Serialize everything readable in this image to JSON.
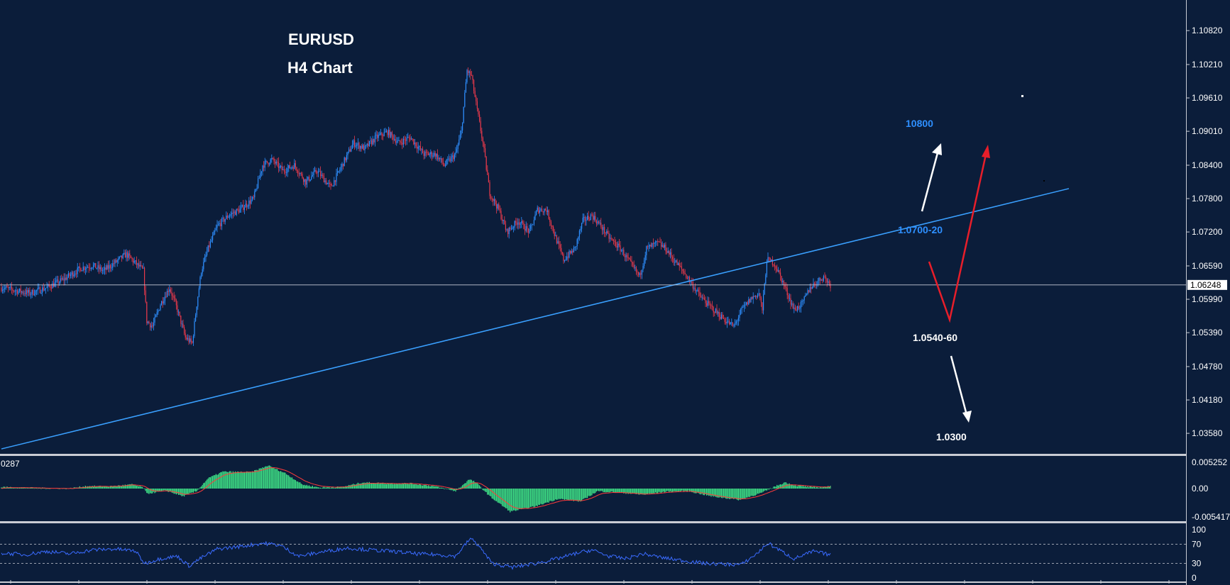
{
  "colors": {
    "background": "#0b1d3a",
    "bull": "#2e8fff",
    "bear": "#e8394b",
    "trendline": "#3aa0ff",
    "macd_hist": "#3ddc84",
    "macd_signal": "#ff3b3b",
    "rsi_line": "#3a6bff",
    "annotation_blue": "#2e8fff",
    "annotation_white": "#ffffff",
    "annotation_red": "#e81e2a"
  },
  "chart_data": [
    {
      "type": "candlestick",
      "title": "EURUSD",
      "subtitle": "H4 Chart",
      "ylim": [
        1.0325,
        1.1137
      ],
      "y_ticks": [
        "1.10820",
        "1.10210",
        "1.09610",
        "1.09010",
        "1.08400",
        "1.07800",
        "1.07200",
        "1.06590",
        "1.05990",
        "1.05390",
        "1.04780",
        "1.04180",
        "1.03580"
      ],
      "current_price": "1.06248",
      "close_path": [
        [
          0,
          1.062
        ],
        [
          12,
          1.0615
        ],
        [
          25,
          1.061
        ],
        [
          40,
          1.062
        ],
        [
          55,
          1.0635
        ],
        [
          70,
          1.0655
        ],
        [
          80,
          1.066
        ],
        [
          90,
          1.065
        ],
        [
          100,
          1.0665
        ],
        [
          110,
          1.068
        ],
        [
          120,
          1.066
        ],
        [
          125,
          1.065
        ],
        [
          128,
          1.056
        ],
        [
          133,
          1.055
        ],
        [
          140,
          1.059
        ],
        [
          148,
          1.062
        ],
        [
          155,
          1.058
        ],
        [
          162,
          1.053
        ],
        [
          168,
          1.052
        ],
        [
          172,
          1.059
        ],
        [
          176,
          1.065
        ],
        [
          182,
          1.069
        ],
        [
          190,
          1.073
        ],
        [
          200,
          1.075
        ],
        [
          210,
          1.076
        ],
        [
          222,
          1.078
        ],
        [
          230,
          1.084
        ],
        [
          238,
          1.085
        ],
        [
          248,
          1.083
        ],
        [
          258,
          1.084
        ],
        [
          268,
          1.081
        ],
        [
          278,
          1.083
        ],
        [
          290,
          1.08
        ],
        [
          300,
          1.084
        ],
        [
          310,
          1.088
        ],
        [
          320,
          1.087
        ],
        [
          330,
          1.089
        ],
        [
          340,
          1.09
        ],
        [
          350,
          1.088
        ],
        [
          360,
          1.089
        ],
        [
          372,
          1.086
        ],
        [
          382,
          1.086
        ],
        [
          390,
          1.084
        ],
        [
          400,
          1.086
        ],
        [
          405,
          1.09
        ],
        [
          410,
          1.101
        ],
        [
          414,
          1.1
        ],
        [
          418,
          1.095
        ],
        [
          424,
          1.088
        ],
        [
          430,
          1.079
        ],
        [
          438,
          1.076
        ],
        [
          445,
          1.072
        ],
        [
          455,
          1.074
        ],
        [
          465,
          1.072
        ],
        [
          472,
          1.076
        ],
        [
          480,
          1.076
        ],
        [
          488,
          1.071
        ],
        [
          495,
          1.067
        ],
        [
          505,
          1.069
        ],
        [
          512,
          1.074
        ],
        [
          520,
          1.075
        ],
        [
          528,
          1.073
        ],
        [
          535,
          1.071
        ],
        [
          545,
          1.069
        ],
        [
          555,
          1.066
        ],
        [
          562,
          1.064
        ],
        [
          568,
          1.069
        ],
        [
          578,
          1.07
        ],
        [
          585,
          1.069
        ],
        [
          592,
          1.067
        ],
        [
          600,
          1.065
        ],
        [
          607,
          1.063
        ],
        [
          615,
          1.0605
        ],
        [
          622,
          1.059
        ],
        [
          630,
          1.0575
        ],
        [
          638,
          1.056
        ],
        [
          645,
          1.055
        ],
        [
          652,
          1.058
        ],
        [
          660,
          1.06
        ],
        [
          667,
          1.061
        ],
        [
          670,
          1.058
        ],
        [
          674,
          1.067
        ],
        [
          680,
          1.0665
        ],
        [
          686,
          1.064
        ],
        [
          692,
          1.061
        ],
        [
          698,
          1.058
        ],
        [
          705,
          1.059
        ],
        [
          712,
          1.062
        ],
        [
          718,
          1.063
        ],
        [
          724,
          1.064
        ],
        [
          730,
          1.0625
        ]
      ],
      "trendline": {
        "from": [
          0,
          1.033
        ],
        "to": [
          940,
          1.0798
        ]
      },
      "annotations": [
        {
          "text": "10800",
          "color": "blue"
        },
        {
          "text": "1.0700-20",
          "color": "blue"
        },
        {
          "text": "1.0540-60",
          "color": "white"
        },
        {
          "text": "1.0300",
          "color": "white"
        }
      ]
    },
    {
      "type": "histogram",
      "indicator": "MACD",
      "label": "0287",
      "y_ticks": [
        "0.005252",
        "0.00",
        "-0.005417"
      ],
      "ylim": [
        -0.0061,
        0.0061
      ],
      "hist_path": [
        [
          0,
          0.0003
        ],
        [
          30,
          0.0001
        ],
        [
          60,
          0.0
        ],
        [
          75,
          0.0005
        ],
        [
          95,
          0.0004
        ],
        [
          115,
          0.0008
        ],
        [
          125,
          0.0002
        ],
        [
          128,
          -0.001
        ],
        [
          145,
          -0.0004
        ],
        [
          160,
          -0.0015
        ],
        [
          172,
          -0.0005
        ],
        [
          182,
          0.002
        ],
        [
          195,
          0.0033
        ],
        [
          220,
          0.0032
        ],
        [
          235,
          0.0045
        ],
        [
          250,
          0.003
        ],
        [
          265,
          0.0008
        ],
        [
          280,
          0.0002
        ],
        [
          300,
          0.0003
        ],
        [
          318,
          0.0012
        ],
        [
          340,
          0.001
        ],
        [
          360,
          0.001
        ],
        [
          380,
          0.0005
        ],
        [
          400,
          -0.0005
        ],
        [
          412,
          0.0018
        ],
        [
          418,
          0.0012
        ],
        [
          430,
          -0.0015
        ],
        [
          448,
          -0.0045
        ],
        [
          470,
          -0.0035
        ],
        [
          490,
          -0.002
        ],
        [
          510,
          -0.0025
        ],
        [
          525,
          -0.0005
        ],
        [
          545,
          -0.0008
        ],
        [
          565,
          -0.0012
        ],
        [
          585,
          -0.0006
        ],
        [
          605,
          -0.0005
        ],
        [
          625,
          -0.0015
        ],
        [
          650,
          -0.0022
        ],
        [
          670,
          -0.0008
        ],
        [
          680,
          0.0003
        ],
        [
          690,
          0.0012
        ],
        [
          700,
          0.0006
        ],
        [
          715,
          0.0002
        ],
        [
          730,
          0.0004
        ]
      ]
    },
    {
      "type": "line",
      "indicator": "RSI",
      "y_ticks": [
        "100",
        "70",
        "30",
        "0"
      ],
      "ylim": [
        0,
        100
      ],
      "levels": [
        70,
        30
      ],
      "rsi_path": [
        [
          0,
          52
        ],
        [
          20,
          48
        ],
        [
          40,
          55
        ],
        [
          60,
          50
        ],
        [
          80,
          58
        ],
        [
          100,
          60
        ],
        [
          118,
          56
        ],
        [
          126,
          30
        ],
        [
          140,
          40
        ],
        [
          155,
          45
        ],
        [
          165,
          25
        ],
        [
          175,
          40
        ],
        [
          190,
          60
        ],
        [
          210,
          65
        ],
        [
          230,
          72
        ],
        [
          245,
          68
        ],
        [
          262,
          45
        ],
        [
          285,
          55
        ],
        [
          305,
          62
        ],
        [
          325,
          58
        ],
        [
          345,
          55
        ],
        [
          365,
          50
        ],
        [
          385,
          48
        ],
        [
          400,
          45
        ],
        [
          413,
          82
        ],
        [
          420,
          68
        ],
        [
          432,
          30
        ],
        [
          450,
          22
        ],
        [
          470,
          30
        ],
        [
          490,
          40
        ],
        [
          508,
          52
        ],
        [
          520,
          58
        ],
        [
          535,
          45
        ],
        [
          550,
          40
        ],
        [
          565,
          50
        ],
        [
          582,
          42
        ],
        [
          600,
          36
        ],
        [
          620,
          30
        ],
        [
          640,
          28
        ],
        [
          652,
          28
        ],
        [
          665,
          50
        ],
        [
          675,
          72
        ],
        [
          685,
          58
        ],
        [
          698,
          40
        ],
        [
          715,
          55
        ],
        [
          730,
          48
        ]
      ]
    }
  ]
}
